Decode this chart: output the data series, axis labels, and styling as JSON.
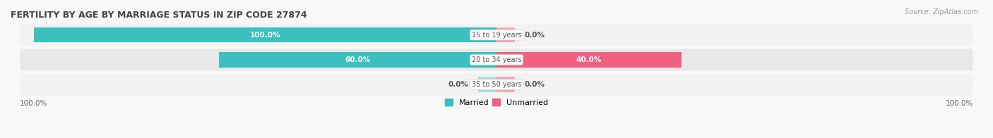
{
  "title": "FERTILITY BY AGE BY MARRIAGE STATUS IN ZIP CODE 27874",
  "source": "Source: ZipAtlas.com",
  "categories": [
    "15 to 19 years",
    "20 to 34 years",
    "35 to 50 years"
  ],
  "married": [
    100.0,
    60.0,
    0.0
  ],
  "unmarried": [
    0.0,
    40.0,
    0.0
  ],
  "married_color": "#3BBFBF",
  "married_light_color": "#A8DEDE",
  "unmarried_color": "#F06080",
  "unmarried_light_color": "#F4A8B8",
  "row_bg_color_odd": "#F2F2F2",
  "row_bg_color_even": "#E8E8E8",
  "title_fontsize": 9,
  "source_fontsize": 7,
  "label_fontsize": 7.5,
  "axis_label_fontsize": 7.5,
  "legend_fontsize": 8,
  "bar_height": 0.62,
  "title_color": "#444444",
  "source_color": "#999999",
  "text_color_white": "#FFFFFF",
  "text_color_dark": "#555555"
}
